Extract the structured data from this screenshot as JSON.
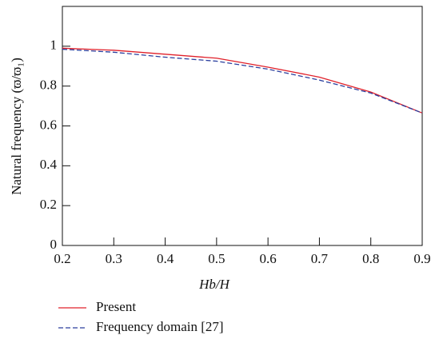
{
  "chart_data": {
    "type": "line",
    "x": [
      0.2,
      0.3,
      0.4,
      0.5,
      0.6,
      0.7,
      0.8,
      0.9
    ],
    "series": [
      {
        "name": "Present",
        "color": "#e0202a",
        "dash": false,
        "values": [
          0.99,
          0.98,
          0.96,
          0.94,
          0.895,
          0.845,
          0.77,
          0.665
        ]
      },
      {
        "name": "Frequency domain [27]",
        "color": "#2b3f9e",
        "dash": true,
        "values": [
          0.985,
          0.97,
          0.945,
          0.925,
          0.885,
          0.83,
          0.765,
          0.665
        ]
      }
    ],
    "xlabel": "Hb/H",
    "ylabel": "Natural frequency (ϖ/ϖ₁)",
    "xlim": [
      0.2,
      0.9
    ],
    "xticks": [
      0.2,
      0.3,
      0.4,
      0.5,
      0.6,
      0.7,
      0.8,
      0.9
    ],
    "ylim": [
      0,
      1.2
    ],
    "yticks": [
      0,
      0.2,
      0.4,
      0.6,
      0.8,
      1
    ],
    "legend": "below"
  }
}
